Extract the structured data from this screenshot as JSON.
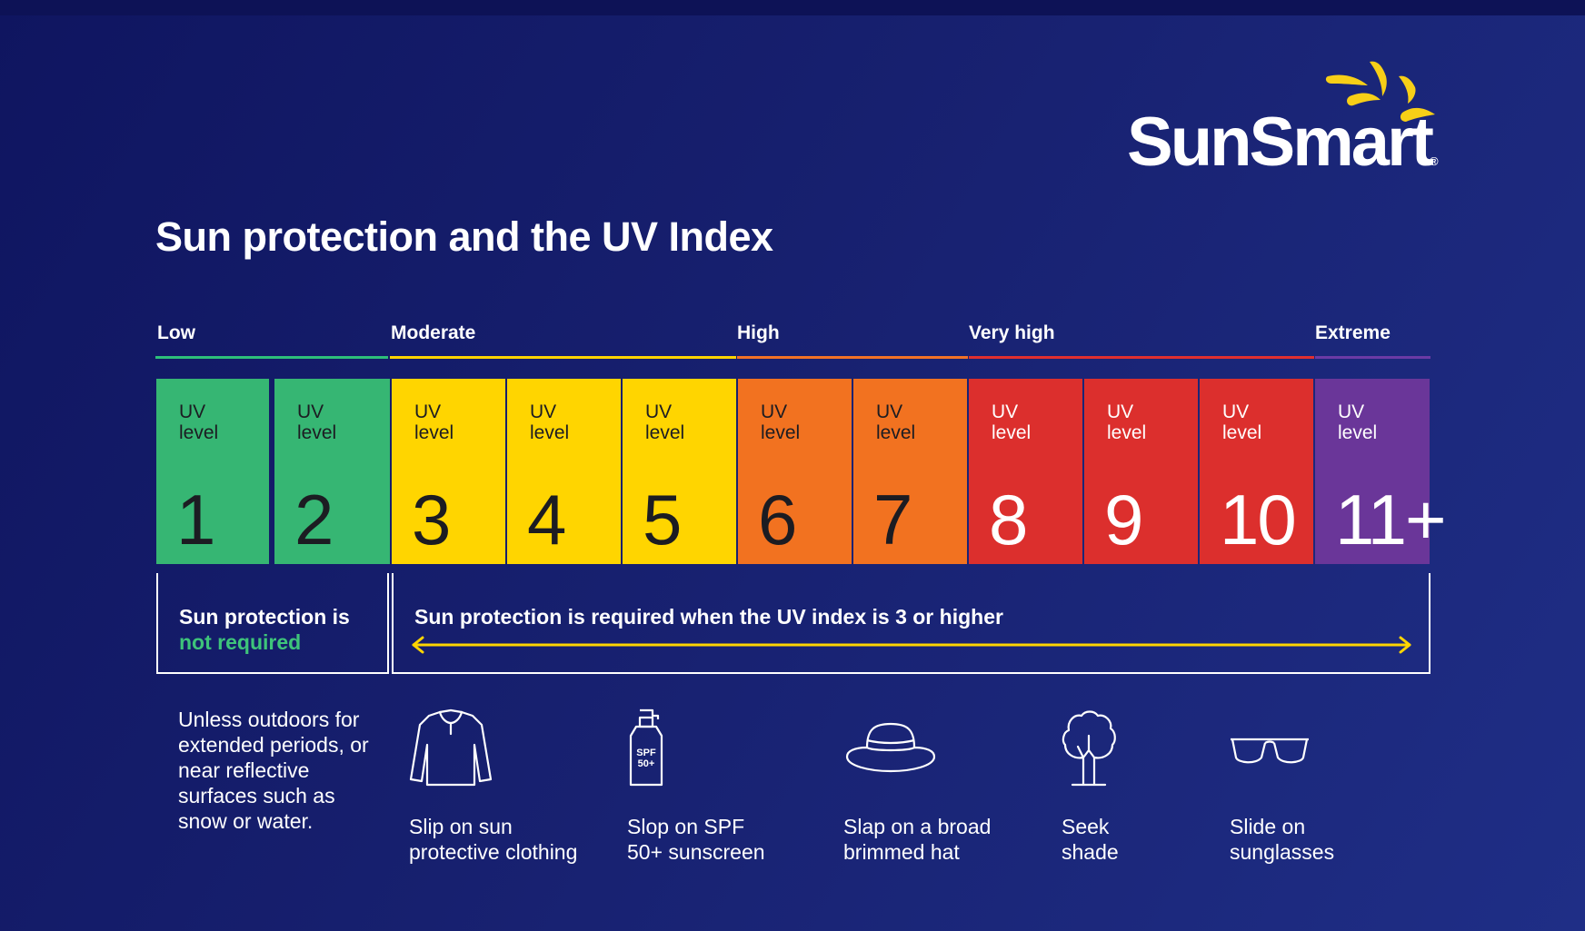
{
  "brand": {
    "name": "SunSmart",
    "registered": "®",
    "sun_color": "#f7cf17"
  },
  "title": "Sun protection and the UV Index",
  "categories": [
    {
      "label": "Low",
      "color": "#2dbf7a"
    },
    {
      "label": "Moderate",
      "color": "#ffd400"
    },
    {
      "label": "High",
      "color": "#f27226"
    },
    {
      "label": "Very high",
      "color": "#e02f2f"
    },
    {
      "label": "Extreme",
      "color": "#6b3aa5"
    }
  ],
  "uv_levels": [
    {
      "label": "UV level",
      "value": "1",
      "color": "#36b673"
    },
    {
      "label": "UV level",
      "value": "2",
      "color": "#36b673"
    },
    {
      "label": "UV level",
      "value": "3",
      "color": "#ffd500"
    },
    {
      "label": "UV level",
      "value": "4",
      "color": "#ffd500"
    },
    {
      "label": "UV level",
      "value": "5",
      "color": "#ffd500"
    },
    {
      "label": "UV level",
      "value": "6",
      "color": "#f27220"
    },
    {
      "label": "UV level",
      "value": "7",
      "color": "#f27220"
    },
    {
      "label": "UV level",
      "value": "8",
      "color": "#dc2f2d"
    },
    {
      "label": "UV level",
      "value": "9",
      "color": "#dc2f2d"
    },
    {
      "label": "UV level",
      "value": "10",
      "color": "#dc2f2d"
    },
    {
      "label": "UV level",
      "value": "11+",
      "color": "#6a3699"
    }
  ],
  "not_required": {
    "line1": "Sun protection is",
    "line2": "not required",
    "highlight_color": "#3ec47a"
  },
  "required": {
    "text": "Sun protection is required when the UV index is 3 or higher",
    "arrow_color": "#ffd500"
  },
  "note": "Unless outdoors for extended periods, or near reflective surfaces such as snow or water.",
  "actions": [
    {
      "icon": "shirt-icon",
      "line1": "Slip on sun",
      "line2": "protective clothing"
    },
    {
      "icon": "sunscreen-bottle-icon",
      "line1": "Slop on SPF",
      "line2": "50+ sunscreen",
      "bottle_label_1": "SPF",
      "bottle_label_2": "50+"
    },
    {
      "icon": "hat-icon",
      "line1": "Slap on a broad",
      "line2": "brimmed hat"
    },
    {
      "icon": "tree-icon",
      "line1": "Seek",
      "line2": "shade"
    },
    {
      "icon": "sunglasses-icon",
      "line1": "Slide on",
      "line2": "sunglasses"
    }
  ]
}
